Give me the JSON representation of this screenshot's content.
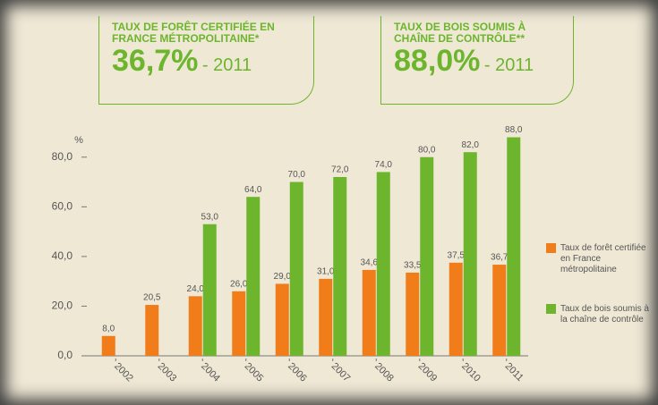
{
  "chart_data": {
    "type": "bar",
    "callouts": [
      {
        "title": "TAUX DE FORÊT CERTIFIÉE EN FRANCE MÉTROPOLITAINE*",
        "value": "36,7%",
        "year": "- 2011"
      },
      {
        "title": "TAUX DE BOIS SOUMIS À CHAÎNE DE CONTRÔLE**",
        "value": "88,0%",
        "year": "- 2011"
      }
    ],
    "ylabel": "%",
    "categories": [
      "2002",
      "2003",
      "2004",
      "2005",
      "2006",
      "2007",
      "2008",
      "2009",
      "2010",
      "2011"
    ],
    "series": [
      {
        "name": "Taux de forêt certifiée en France métropolitaine",
        "color": "#f07d1a",
        "values": [
          8.0,
          20.5,
          24.0,
          26.0,
          29.0,
          31.0,
          34.6,
          33.5,
          37.5,
          36.7
        ],
        "value_labels": [
          "8,0",
          "20,5",
          "24,0",
          "26,0",
          "29,0",
          "31,0",
          "34,6",
          "33,5",
          "37,5",
          "36,7"
        ]
      },
      {
        "name": "Taux de bois soumis à la chaîne de contrôle",
        "color": "#6cb52d",
        "values": [
          null,
          null,
          53.0,
          64.0,
          70.0,
          72.0,
          74.0,
          80.0,
          82.0,
          88.0
        ],
        "value_labels": [
          null,
          null,
          "53,0",
          "64,0",
          "70,0",
          "72,0",
          "74,0",
          "80,0",
          "82,0",
          "88,0"
        ]
      }
    ],
    "ylim": [
      0,
      90
    ],
    "yticks": [
      {
        "value": 0,
        "label": "0,0"
      },
      {
        "value": 20,
        "label": "20,0"
      },
      {
        "value": 40,
        "label": "40,0"
      },
      {
        "value": 60,
        "label": "60,0"
      },
      {
        "value": 80,
        "label": "80,0"
      }
    ],
    "legend": "right"
  }
}
